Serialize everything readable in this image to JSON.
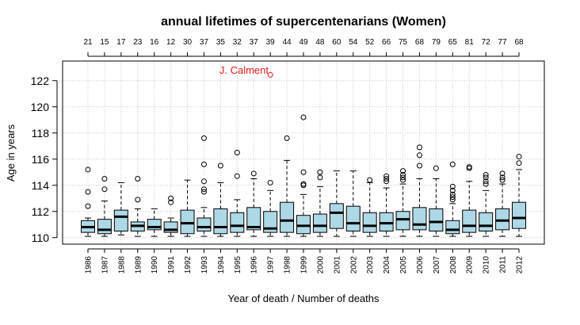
{
  "chart_data": {
    "type": "boxplot",
    "title": "annual lifetimes of supercentenarians (Women)",
    "xlabel": "Year of death / Number of deaths",
    "ylabel": "Age in years",
    "ylim": [
      109.5,
      123.5
    ],
    "yticks": [
      110,
      112,
      114,
      116,
      118,
      120,
      122
    ],
    "grid": true,
    "colors": {
      "box_fill": "#add8e6",
      "grid": "#c8c8c8",
      "annotation": "#e31a1c",
      "ink": "#000000"
    },
    "annotation": {
      "label": "J. Calment",
      "year": "1997",
      "value": 122.45
    },
    "series": [
      {
        "year": "1986",
        "count": 21,
        "min": 110.1,
        "q1": 110.4,
        "median": 110.8,
        "q3": 111.3,
        "max": 111.5,
        "outliers": [
          112.4,
          113.5,
          115.2
        ]
      },
      {
        "year": "1987",
        "count": 15,
        "min": 110.1,
        "q1": 110.3,
        "median": 110.6,
        "q3": 111.4,
        "max": 112.8,
        "outliers": [
          113.7,
          114.5
        ]
      },
      {
        "year": "1988",
        "count": 17,
        "min": 110.2,
        "q1": 110.5,
        "median": 111.6,
        "q3": 112.1,
        "max": 114.2,
        "outliers": []
      },
      {
        "year": "1989",
        "count": 23,
        "min": 110.1,
        "q1": 110.5,
        "median": 110.9,
        "q3": 111.2,
        "max": 112.2,
        "outliers": [
          112.9,
          114.5
        ]
      },
      {
        "year": "1990",
        "count": 16,
        "min": 110.1,
        "q1": 110.6,
        "median": 110.8,
        "q3": 111.4,
        "max": 112.2,
        "outliers": []
      },
      {
        "year": "1991",
        "count": 12,
        "min": 110.1,
        "q1": 110.4,
        "median": 110.6,
        "q3": 111.2,
        "max": 111.5,
        "outliers": [
          112.7,
          113.0
        ]
      },
      {
        "year": "1992",
        "count": 30,
        "min": 110.1,
        "q1": 110.3,
        "median": 111.1,
        "q3": 112.1,
        "max": 114.4,
        "outliers": []
      },
      {
        "year": "1993",
        "count": 37,
        "min": 110.1,
        "q1": 110.5,
        "median": 110.8,
        "q3": 111.5,
        "max": 112.3,
        "outliers": [
          113.5,
          113.7,
          114.3,
          115.6,
          117.6
        ]
      },
      {
        "year": "1994",
        "count": 35,
        "min": 110.1,
        "q1": 110.3,
        "median": 110.8,
        "q3": 112.2,
        "max": 114.2,
        "outliers": [
          115.5
        ]
      },
      {
        "year": "1995",
        "count": 32,
        "min": 110.1,
        "q1": 110.4,
        "median": 110.9,
        "q3": 111.9,
        "max": 112.9,
        "outliers": [
          114.7,
          116.5
        ]
      },
      {
        "year": "1996",
        "count": 37,
        "min": 110.1,
        "q1": 110.6,
        "median": 110.8,
        "q3": 112.3,
        "max": 114.5,
        "outliers": [
          114.9
        ]
      },
      {
        "year": "1997",
        "count": 39,
        "min": 110.1,
        "q1": 110.4,
        "median": 110.7,
        "q3": 112.0,
        "max": 113.6,
        "outliers": [
          114.2,
          122.45
        ]
      },
      {
        "year": "1998",
        "count": 44,
        "min": 110.1,
        "q1": 110.4,
        "median": 111.3,
        "q3": 112.7,
        "max": 115.9,
        "outliers": [
          117.6
        ]
      },
      {
        "year": "1999",
        "count": 49,
        "min": 110.1,
        "q1": 110.3,
        "median": 110.9,
        "q3": 111.7,
        "max": 113.3,
        "outliers": [
          114.0,
          114.1,
          115.0,
          119.2
        ]
      },
      {
        "year": "2000",
        "count": 48,
        "min": 110.1,
        "q1": 110.4,
        "median": 110.9,
        "q3": 111.8,
        "max": 113.9,
        "outliers": [
          114.6,
          115.0
        ]
      },
      {
        "year": "2001",
        "count": 60,
        "min": 110.1,
        "q1": 110.7,
        "median": 111.9,
        "q3": 112.6,
        "max": 115.1,
        "outliers": []
      },
      {
        "year": "2002",
        "count": 54,
        "min": 110.1,
        "q1": 110.5,
        "median": 111.1,
        "q3": 112.4,
        "max": 115.1,
        "outliers": []
      },
      {
        "year": "2003",
        "count": 52,
        "min": 110.1,
        "q1": 110.4,
        "median": 110.9,
        "q3": 111.9,
        "max": 114.2,
        "outliers": [
          114.4
        ]
      },
      {
        "year": "2004",
        "count": 66,
        "min": 110.1,
        "q1": 110.5,
        "median": 111.1,
        "q3": 111.9,
        "max": 113.8,
        "outliers": [
          114.3,
          114.5,
          114.7
        ]
      },
      {
        "year": "2005",
        "count": 75,
        "min": 110.1,
        "q1": 110.6,
        "median": 111.4,
        "q3": 112.0,
        "max": 114.1,
        "outliers": [
          114.4,
          114.6,
          114.8,
          115.1
        ]
      },
      {
        "year": "2006",
        "count": 68,
        "min": 110.1,
        "q1": 110.6,
        "median": 111.0,
        "q3": 112.3,
        "max": 114.5,
        "outliers": [
          115.5,
          116.3,
          116.9
        ]
      },
      {
        "year": "2007",
        "count": 79,
        "min": 110.1,
        "q1": 110.5,
        "median": 111.2,
        "q3": 112.2,
        "max": 114.5,
        "outliers": [
          115.3
        ]
      },
      {
        "year": "2008",
        "count": 65,
        "min": 110.1,
        "q1": 110.3,
        "median": 110.6,
        "q3": 111.3,
        "max": 112.6,
        "outliers": [
          112.9,
          113.1,
          113.3,
          113.6,
          113.9,
          115.6
        ]
      },
      {
        "year": "2009",
        "count": 81,
        "min": 110.1,
        "q1": 110.4,
        "median": 110.9,
        "q3": 112.1,
        "max": 114.3,
        "outliers": [
          115.3,
          115.4
        ]
      },
      {
        "year": "2010",
        "count": 72,
        "min": 110.1,
        "q1": 110.5,
        "median": 110.9,
        "q3": 111.9,
        "max": 113.6,
        "outliers": [
          114.1,
          114.3,
          114.6,
          114.8
        ]
      },
      {
        "year": "2011",
        "count": 77,
        "min": 110.1,
        "q1": 110.6,
        "median": 111.3,
        "q3": 112.2,
        "max": 114.1,
        "outliers": [
          114.4,
          114.6,
          114.9
        ]
      },
      {
        "year": "2012",
        "count": 68,
        "min": 110.1,
        "q1": 110.7,
        "median": 111.5,
        "q3": 112.7,
        "max": 115.2,
        "outliers": [
          115.7,
          116.2
        ]
      }
    ]
  }
}
